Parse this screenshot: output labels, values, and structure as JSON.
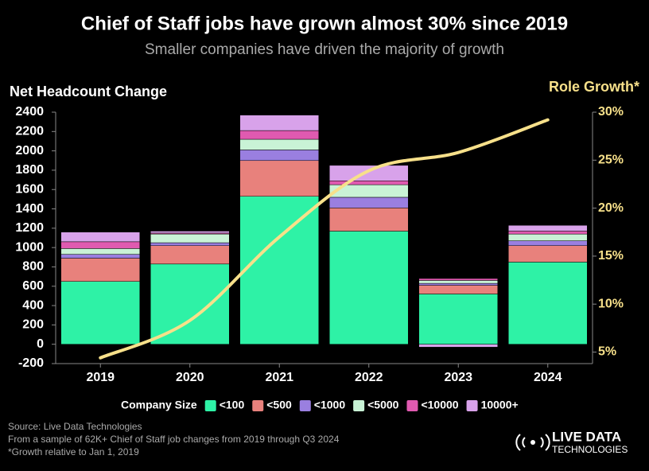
{
  "chart_data": {
    "type": "bar",
    "title": "Chief of Staff jobs have grown almost 30% since 2019",
    "subtitle": "Smaller companies have driven the majority of growth",
    "y_label": "Net Headcount Change",
    "y2_label": "Role Growth*",
    "legend_title": "Company Size",
    "categories": [
      "2019",
      "2020",
      "2021",
      "2022",
      "2023",
      "2024"
    ],
    "ylim": [
      -200,
      2400
    ],
    "yticks": [
      -200,
      0,
      200,
      400,
      600,
      800,
      1000,
      1200,
      1400,
      1600,
      1800,
      2000,
      2200,
      2400
    ],
    "y2lim": [
      3.8,
      30
    ],
    "y2ticks": [
      {
        "value": 5,
        "label": "5%"
      },
      {
        "value": 10,
        "label": "10%"
      },
      {
        "value": 15,
        "label": "15%"
      },
      {
        "value": 20,
        "label": "20%"
      },
      {
        "value": 25,
        "label": "25%"
      },
      {
        "value": 30,
        "label": "30%"
      }
    ],
    "stacked": true,
    "series": [
      {
        "name": "<100",
        "color": "#2ef2a6",
        "values": [
          650,
          830,
          1530,
          1170,
          520,
          850
        ]
      },
      {
        "name": "<500",
        "color": "#e8817c",
        "values": [
          240,
          190,
          370,
          240,
          90,
          170
        ]
      },
      {
        "name": "<1000",
        "color": "#9a7fe0",
        "values": [
          40,
          30,
          110,
          110,
          20,
          50
        ]
      },
      {
        "name": "<5000",
        "color": "#c9f3d6",
        "values": [
          60,
          90,
          110,
          130,
          30,
          70
        ]
      },
      {
        "name": "<10000",
        "color": "#e05ab0",
        "values": [
          70,
          10,
          90,
          40,
          20,
          30
        ]
      },
      {
        "name": "10000+",
        "color": "#d8a2ea",
        "values": [
          100,
          20,
          160,
          160,
          -30,
          60
        ]
      },
      {
        "name": "Role Growth",
        "type": "line",
        "axis": "y2",
        "color": "#f7e08a",
        "values": [
          4.4,
          8.3,
          17.0,
          23.9,
          25.8,
          29.2
        ]
      }
    ],
    "sources": [
      "Source: Live Data Technologies",
      "From a sample of 62K+ Chief of Staff job changes from 2019 through Q3 2024",
      "*Growth relative to Jan 1, 2019"
    ],
    "logo": [
      "LIVE DATA",
      "TECHNOLOGIES"
    ]
  }
}
